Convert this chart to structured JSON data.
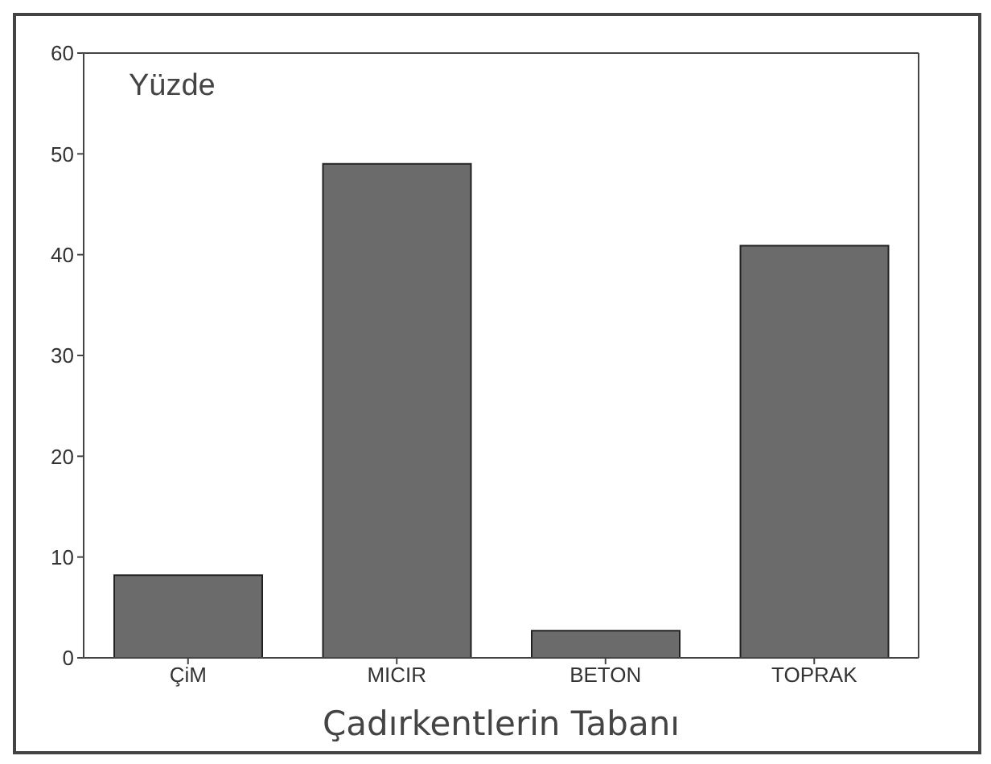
{
  "chart_data": {
    "type": "bar",
    "xlabel": "Çadırkentlerin Tabanı",
    "ylabel": "Yüzde",
    "categories": [
      "ÇiM",
      "MICIR",
      "BETON",
      "TOPRAK"
    ],
    "values": [
      8.2,
      49,
      2.7,
      40.9
    ],
    "color": "#6b6b6b",
    "ylim": [
      0,
      60
    ],
    "yticks": [
      0,
      10,
      20,
      30,
      40,
      50,
      60
    ],
    "grid": false
  }
}
